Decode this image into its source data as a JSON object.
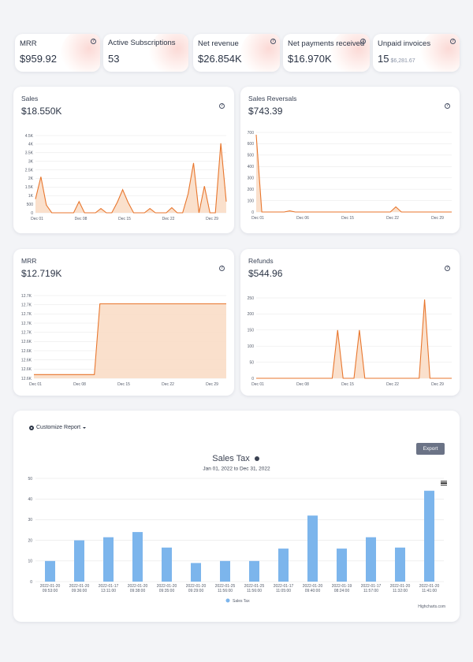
{
  "stats": [
    {
      "label": "MRR",
      "value": "$959.92",
      "sub": ""
    },
    {
      "label": "Active Subscriptions",
      "value": "53",
      "sub": ""
    },
    {
      "label": "Net revenue",
      "value": "$26.854K",
      "sub": ""
    },
    {
      "label": "Net payments received",
      "value": "$16.970K",
      "sub": ""
    },
    {
      "label": "Unpaid invoices",
      "value": "15",
      "sub": "$6,281.67"
    }
  ],
  "help_glyph": "?",
  "charts": {
    "sales": {
      "title": "Sales",
      "amount": "$18.550K"
    },
    "reversals": {
      "title": "Sales Reversals",
      "amount": "$743.39"
    },
    "mrr": {
      "title": "MRR",
      "amount": "$12.719K"
    },
    "refunds": {
      "title": "Refunds",
      "amount": "$544.96"
    }
  },
  "report": {
    "customize_label": "Customize Report",
    "export_label": "Export",
    "chart_title": "Sales Tax",
    "date_range": "Jan 01, 2022 to Dec 31, 2022",
    "credit": "Highcharts.com"
  },
  "chart_data": [
    {
      "type": "area",
      "title": "Sales",
      "x_ticks": [
        "Dec 01",
        "Dec 08",
        "Dec 15",
        "Dec 22",
        "Dec 29"
      ],
      "y_ticks": [
        "0",
        "500",
        "1K",
        "1.5K",
        "2K",
        "2.5K",
        "3K",
        "3.5K",
        "4K",
        "4.5K"
      ],
      "ylim": [
        0,
        4500
      ],
      "values": [
        800,
        2100,
        450,
        0,
        0,
        0,
        0,
        0,
        650,
        0,
        0,
        0,
        250,
        0,
        0,
        600,
        1350,
        600,
        0,
        0,
        0,
        250,
        0,
        0,
        0,
        300,
        0,
        0,
        1100,
        2900,
        0,
        1550,
        0,
        0,
        4050,
        650
      ],
      "color": "#e8762d",
      "fill": "#f9ddc7"
    },
    {
      "type": "area",
      "title": "Sales Reversals",
      "x_ticks": [
        "Dec 01",
        "Dec 06",
        "Dec 15",
        "Dec 22",
        "Dec 29"
      ],
      "y_ticks": [
        "0",
        "100",
        "200",
        "300",
        "400",
        "500",
        "600",
        "700"
      ],
      "ylim": [
        0,
        700
      ],
      "values": [
        680,
        0,
        0,
        0,
        0,
        0,
        10,
        0,
        0,
        0,
        0,
        0,
        0,
        0,
        0,
        0,
        0,
        0,
        0,
        0,
        0,
        0,
        0,
        0,
        0,
        45,
        0,
        0,
        0,
        0,
        0,
        0,
        0,
        0,
        0,
        0
      ],
      "color": "#e8762d",
      "fill": "#f9ddc7"
    },
    {
      "type": "area",
      "title": "MRR",
      "x_ticks": [
        "Dec 01",
        "Dec 08",
        "Dec 15",
        "Dec 22",
        "Dec 29"
      ],
      "y_ticks": [
        "12.6K",
        "12.6K",
        "12.6K",
        "12.6K",
        "12.6K",
        "12.7K",
        "12.7K",
        "12.7K",
        "12.7K",
        "12.7K"
      ],
      "ylim": [
        0,
        9
      ],
      "values": [
        0.4,
        0.4,
        0.4,
        0.4,
        0.4,
        0.4,
        0.4,
        0.4,
        0.4,
        0.4,
        0.4,
        0.4,
        8.1,
        8.1,
        8.1,
        8.1,
        8.1,
        8.1,
        8.1,
        8.1,
        8.1,
        8.1,
        8.1,
        8.1,
        8.1,
        8.1,
        8.1,
        8.1,
        8.1,
        8.1,
        8.1,
        8.1,
        8.1,
        8.1,
        8.1,
        8.1
      ],
      "color": "#e8762d",
      "fill": "#f9ddc7"
    },
    {
      "type": "area",
      "title": "Refunds",
      "x_ticks": [
        "Dec 01",
        "Dec 08",
        "Dec 15",
        "Dec 22",
        "Dec 29"
      ],
      "y_ticks": [
        "0",
        "50",
        "100",
        "150",
        "200",
        "250"
      ],
      "ylim": [
        0,
        250
      ],
      "values": [
        0,
        0,
        0,
        0,
        0,
        0,
        0,
        0,
        0,
        0,
        0,
        0,
        0,
        0,
        0,
        150,
        0,
        0,
        0,
        150,
        0,
        0,
        0,
        0,
        0,
        0,
        0,
        0,
        0,
        0,
        0,
        245,
        0,
        0,
        0,
        0,
        0
      ],
      "color": "#e8762d",
      "fill": "#f9ddc7"
    },
    {
      "type": "bar",
      "title": "Sales Tax",
      "categories": [
        "2022-01-20 09:53:00",
        "2022-01-20 09:36:00",
        "2022-01-17 13:11:00",
        "2022-01-20 09:38:00",
        "2022-01-20 09:35:00",
        "2022-01-20 09:29:00",
        "2022-01-25 11:56:00",
        "2022-01-25 11:56:00",
        "2022-01-17 11:05:00",
        "2022-01-20 09:40:00",
        "2022-01-19 08:24:00",
        "2022-01-17 11:57:00",
        "2022-01-20 11:32:00",
        "2022-01-20 11:41:00"
      ],
      "series": [
        {
          "name": "Sales Tax",
          "values": [
            10,
            20,
            21.5,
            24,
            16.5,
            9,
            10,
            10,
            16,
            32,
            16,
            21.5,
            16.5,
            44
          ]
        }
      ],
      "y_ticks": [
        "0",
        "10",
        "20",
        "30",
        "40",
        "50"
      ],
      "ylim": [
        0,
        50
      ],
      "color": "#7cb5ec",
      "legend": "bottom-center"
    }
  ]
}
